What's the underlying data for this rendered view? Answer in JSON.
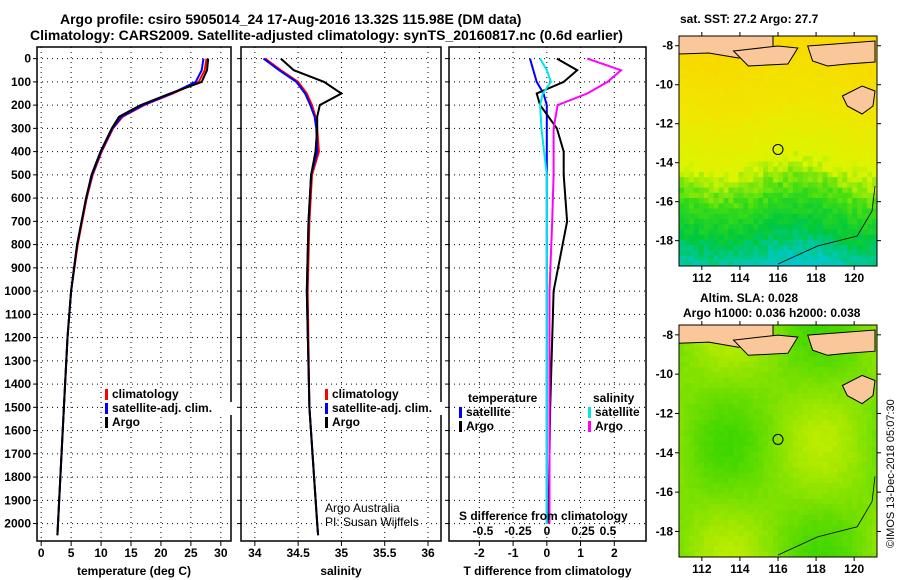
{
  "title_line1": "Argo profile: csiro 5905014_24 17-Aug-2016 13.32S 115.98E (DM data)",
  "title_line2": "Climatology: CARS2009. Satellite-adjusted climatology: synTS_20160817.nc (0.6d earlier)",
  "colors": {
    "climatology": "#ff0000",
    "satellite": "#0000ff",
    "argo": "#000000",
    "sal_satellite": "#00e5ee",
    "sal_argo": "#ff00ff"
  },
  "chart_data": [
    {
      "type": "line",
      "xlabel": "temperature (deg C)",
      "ylabel": "",
      "xlim": [
        -0.7,
        31.7
      ],
      "ylim": [
        2075,
        -50
      ],
      "xticks": [
        "0",
        "5",
        "10",
        "15",
        "20",
        "25",
        "30"
      ],
      "xtick_values": [
        0,
        5,
        10,
        15,
        20,
        25,
        30
      ],
      "yticks": [
        "0",
        "100",
        "200",
        "300",
        "400",
        "500",
        "600",
        "700",
        "800",
        "900",
        "1000",
        "1100",
        "1200",
        "1300",
        "1400",
        "1500",
        "1600",
        "1700",
        "1800",
        "1900",
        "2000"
      ],
      "legend": [
        "climatology",
        "satellite-adj. clim.",
        "Argo"
      ],
      "depth": [
        0,
        50,
        100,
        150,
        200,
        250,
        300,
        400,
        500,
        600,
        800,
        1000,
        1200,
        1500,
        2000,
        2050
      ],
      "series": [
        {
          "name": "climatology",
          "values": [
            27.6,
            27.3,
            26.3,
            22,
            17.2,
            13.6,
            12,
            10.1,
            8.6,
            7.6,
            6.1,
            5,
            4.4,
            3.8,
            2.8,
            2.7
          ]
        },
        {
          "name": "satellite-adj. clim.",
          "values": [
            27.1,
            26.8,
            25.8,
            21.8,
            17,
            13.4,
            11.9,
            10,
            8.5,
            7.5,
            6,
            5,
            4.4,
            3.8,
            2.8,
            2.7
          ]
        },
        {
          "name": "Argo",
          "values": [
            27.9,
            27.7,
            26.8,
            21.5,
            16.6,
            13,
            11.8,
            9.9,
            8.4,
            7.5,
            6,
            5,
            4.4,
            3.8,
            2.8,
            2.7
          ]
        }
      ]
    },
    {
      "type": "line",
      "xlabel": "salinity",
      "xlim": [
        33.84,
        36.15
      ],
      "ylim": [
        2075,
        -50
      ],
      "xticks": [
        "34",
        "34.5",
        "35",
        "35.5",
        "36"
      ],
      "xtick_values": [
        34,
        34.5,
        35,
        35.5,
        36
      ],
      "legend": [
        "climatology",
        "satellite-adj. clim.",
        "Argo"
      ],
      "depth": [
        0,
        50,
        100,
        150,
        200,
        250,
        300,
        400,
        500,
        700,
        1000,
        1500,
        2000,
        2050
      ],
      "series": [
        {
          "name": "climatology",
          "values": [
            34.12,
            34.3,
            34.5,
            34.6,
            34.66,
            34.7,
            34.72,
            34.74,
            34.66,
            34.63,
            34.61,
            34.63,
            34.72,
            34.73
          ]
        },
        {
          "name": "satellite-adj. clim.",
          "values": [
            34.1,
            34.28,
            34.48,
            34.58,
            34.64,
            34.69,
            34.71,
            34.72,
            34.65,
            34.62,
            34.6,
            34.63,
            34.72,
            34.73
          ]
        },
        {
          "name": "Argo",
          "values": [
            34.3,
            34.45,
            34.8,
            35.0,
            34.75,
            34.72,
            34.72,
            34.7,
            34.65,
            34.62,
            34.6,
            34.63,
            34.72,
            34.73
          ]
        }
      ],
      "annotations": [
        "Argo Australia",
        "PI: Susan Wijffels"
      ]
    },
    {
      "type": "line",
      "xlabel": "T difference from climatology",
      "xlabel2": "S difference from climatology",
      "xlim": [
        -2.9,
        2.94
      ],
      "ylim": [
        2075,
        -50
      ],
      "xticks": [
        "-2",
        "-1",
        "0",
        "1",
        "2"
      ],
      "xtick_values": [
        -2,
        -1,
        0,
        1,
        2
      ],
      "xticks2": [
        "-0.5",
        "-0.25",
        "0",
        "0.25",
        "0.5"
      ],
      "xtick2_values": [
        -0.5,
        -0.25,
        0,
        0.25,
        0.5
      ],
      "legend_temperature_title": "temperature",
      "legend_salinity_title": "salinity",
      "legend_temperature": [
        "satellite",
        "Argo"
      ],
      "legend_salinity": [
        "satellite",
        "Argo"
      ],
      "depth": [
        0,
        50,
        100,
        150,
        200,
        300,
        400,
        500,
        700,
        1000,
        1500,
        2000
      ],
      "series": [
        {
          "name": "T satellite",
          "values": [
            -0.5,
            -0.4,
            -0.3,
            -0.1,
            0,
            0,
            0,
            0,
            0,
            0,
            0,
            0
          ]
        },
        {
          "name": "T Argo",
          "values": [
            0.3,
            0.9,
            0.5,
            -0.3,
            -0.2,
            0.3,
            0.5,
            0.5,
            0.6,
            0.2,
            0.1,
            0.05
          ]
        },
        {
          "name": "S satellite",
          "values": [
            -0.05,
            0,
            0.03,
            -0.03,
            -0.05,
            -0.04,
            -0.02,
            0,
            0,
            0,
            0,
            0
          ]
        },
        {
          "name": "S Argo",
          "values": [
            0.3,
            0.55,
            0.45,
            0.3,
            0.08,
            0.05,
            0.05,
            0.05,
            0.04,
            0.02,
            0.02,
            0.02
          ]
        }
      ]
    }
  ],
  "map1": {
    "title": "sat. SST: 27.2 Argo: 27.7",
    "xticks": [
      "112",
      "114",
      "116",
      "118",
      "120"
    ],
    "yticks": [
      "-8",
      "-10",
      "-12",
      "-14",
      "-16",
      "-18"
    ]
  },
  "map2": {
    "title1": "Altim. SLA: 0.028",
    "title2": "Argo h1000: 0.036 h2000: 0.038",
    "xticks": [
      "112",
      "114",
      "116",
      "118",
      "120"
    ],
    "yticks": [
      "-8",
      "-10",
      "-12",
      "-14",
      "-16",
      "-18"
    ]
  },
  "credit": "©IMOS 13-Dec-2018 05:07:30"
}
